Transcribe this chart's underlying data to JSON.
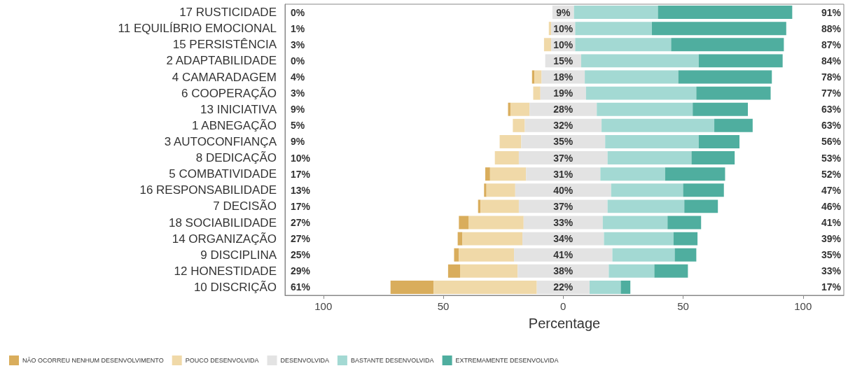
{
  "chart_data": {
    "type": "bar",
    "orientation": "horizontal",
    "xlabel": "Percentage",
    "legend": "bottom",
    "grid": false,
    "categories": [
      "17 RUSTICIDADE",
      "11 EQUILÍBRIO EMOCIONAL",
      "15 PERSISTÊNCIA",
      "2 ADAPTABILIDADE",
      "4 CAMARADAGEM",
      "6 COOPERAÇÃO",
      "13 INICIATIVA",
      "1 ABNEGAÇÃO",
      "3 AUTOCONFIANÇA",
      "8 DEDICAÇÃO",
      "5 COMBATIVIDADE",
      "16 RESPONSABILIDADE",
      "7 DECISÃO",
      "18 SOCIABILIDADE",
      "14 ORGANIZAÇÃO",
      "9 DISCIPLINA",
      "12 HONESTIDADE",
      "10 DISCRIÇÃO"
    ],
    "xlim": [
      -116,
      117
    ],
    "xticks": [
      {
        "value": -100,
        "label": "100"
      },
      {
        "value": -50,
        "label": "50"
      },
      0,
      50,
      100
    ],
    "series": [
      {
        "name": "NÃO OCORREU NENHUM DESENVOLVIMENTO",
        "color": "#d9ad5c",
        "values": [
          0,
          0,
          0,
          0,
          1,
          0,
          1,
          0,
          0,
          0,
          2,
          1,
          1,
          4,
          2,
          2,
          5,
          18
        ],
        "base": [
          null,
          null,
          null,
          null,
          -13,
          null,
          -23,
          null,
          null,
          null,
          -32.5,
          -33,
          -35.5,
          -43.5,
          -44,
          -45.5,
          -48,
          -72
        ]
      },
      {
        "name": "POUCO DESENVOLVIDA",
        "color": "#f0d9a8",
        "values": [
          0,
          1,
          3,
          0,
          3,
          3,
          8,
          5,
          9,
          10,
          15,
          12,
          16,
          23,
          25,
          23,
          24,
          43
        ],
        "base": [
          null,
          -6,
          -8,
          null,
          -12,
          -12.5,
          -22,
          -21,
          -26.5,
          -28.5,
          -30.5,
          -32,
          -34.5,
          -39.5,
          -42,
          -43.5,
          -43,
          -54
        ]
      },
      {
        "name": "DESENVOLVIDA",
        "color": "#e3e3e3",
        "values": [
          9,
          10,
          10,
          15,
          18,
          19,
          28,
          32,
          35,
          37,
          31,
          40,
          37,
          33,
          34,
          41,
          38,
          22
        ],
        "base": [
          -4.5,
          -5,
          -5,
          -7.5,
          -9,
          -9.5,
          -14,
          -16,
          -17.5,
          -18.5,
          -15.5,
          -20,
          -18.5,
          -16.5,
          -17,
          -20.5,
          -19,
          -11
        ],
        "value_labels": [
          "9%",
          "10%",
          "10%",
          "15%",
          "18%",
          "19%",
          "28%",
          "32%",
          "35%",
          "37%",
          "31%",
          "40%",
          "37%",
          "33%",
          "34%",
          "41%",
          "38%",
          "22%"
        ]
      },
      {
        "name": "BASTANTE DESENVOLVIDA",
        "color": "#a3d9d3",
        "values": [
          35,
          32,
          40,
          49,
          39,
          46,
          40,
          47,
          39,
          35,
          27,
          30,
          32,
          27,
          29,
          26,
          19,
          13
        ],
        "base": [
          4.5,
          5,
          5,
          7.5,
          9,
          9.5,
          14,
          16,
          17.5,
          18.5,
          15.5,
          20,
          18.5,
          16.5,
          17,
          20.5,
          19,
          11
        ]
      },
      {
        "name": "EXTREMAMENTE DESENVOLVIDA",
        "color": "#4fae9f",
        "values": [
          56,
          56,
          47,
          35,
          39,
          31,
          23,
          16,
          17,
          18,
          25,
          17,
          14,
          14,
          10,
          9,
          14,
          4
        ],
        "base": [
          39.5,
          37,
          45,
          56.5,
          48,
          55.5,
          54,
          63,
          56.5,
          53.5,
          42.5,
          50,
          50.5,
          43.5,
          46,
          46.5,
          38,
          24
        ]
      }
    ],
    "annotations": [
      "0%",
      "1%",
      "3%",
      "0%",
      "4%",
      "3%",
      "9%",
      "5%",
      "9%",
      "10%",
      "17%",
      "13%",
      "17%",
      "27%",
      "27%",
      "25%",
      "29%",
      "61%",
      "91%",
      "88%",
      "87%",
      "84%",
      "78%",
      "77%",
      "63%",
      "63%",
      "56%",
      "53%",
      "52%",
      "47%",
      "46%",
      "41%",
      "39%",
      "35%",
      "33%",
      "17%"
    ]
  }
}
